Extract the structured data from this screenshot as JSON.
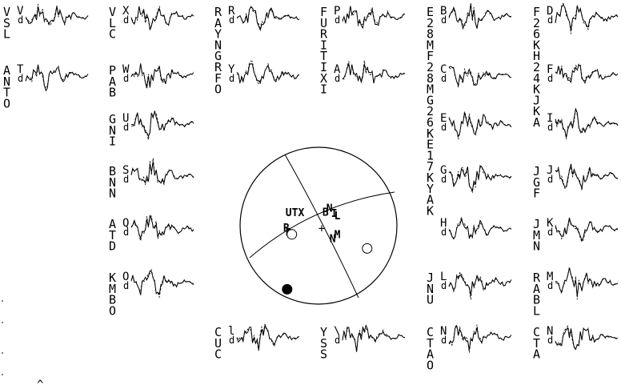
{
  "panels": [
    {
      "station": "VSL",
      "comp": "V",
      "col": 0,
      "row": 0
    },
    {
      "station": "ANTO",
      "comp": "T",
      "col": 0,
      "row": 1
    },
    {
      "station": "VLC",
      "comp": "X",
      "col": 1,
      "row": 0
    },
    {
      "station": "PAB",
      "comp": "W",
      "col": 1,
      "row": 1
    },
    {
      "station": "GNI",
      "comp": "U",
      "col": 1,
      "row": 2
    },
    {
      "station": "BNN",
      "comp": "S",
      "col": 1,
      "row": 3
    },
    {
      "station": "ATD",
      "comp": "Q",
      "col": 1,
      "row": 4
    },
    {
      "station": "KMBO",
      "comp": "O",
      "col": 1,
      "row": 5
    },
    {
      "station": "RAYNGRFO",
      "comp": "R",
      "col": 2,
      "row": 0
    },
    {
      "station": "",
      "comp": "Y",
      "col": 2,
      "row": 1
    },
    {
      "station": "CUC",
      "comp": "l",
      "col": 2,
      "row": 6
    },
    {
      "station": "FURITIXI",
      "comp": "P",
      "col": 3,
      "row": 0
    },
    {
      "station": "",
      "comp": "A",
      "col": 3,
      "row": 1
    },
    {
      "station": "YSS",
      "comp": "\\",
      "col": 3,
      "row": 6
    },
    {
      "station": "E28MF28MG26KE17KYAK",
      "comp": "B",
      "col": 4,
      "row": 0
    },
    {
      "station": "",
      "comp": "C",
      "col": 4,
      "row": 1
    },
    {
      "station": "",
      "comp": "E",
      "col": 4,
      "row": 2
    },
    {
      "station": "",
      "comp": "G",
      "col": 4,
      "row": 3
    },
    {
      "station": "",
      "comp": "H",
      "col": 4,
      "row": 4
    },
    {
      "station": "JNU",
      "comp": "L",
      "col": 4,
      "row": 5
    },
    {
      "station": "CTAO",
      "comp": "N",
      "col": 4,
      "row": 6
    },
    {
      "station": "F26KH24KJKA",
      "comp": "D",
      "col": 5,
      "row": 0
    },
    {
      "station": "",
      "comp": "F",
      "col": 5,
      "row": 1
    },
    {
      "station": "",
      "comp": "I",
      "col": 5,
      "row": 2
    },
    {
      "station": "JGF",
      "comp": "J",
      "col": 5,
      "row": 3
    },
    {
      "station": "JMN",
      "comp": "K",
      "col": 5,
      "row": 4
    },
    {
      "station": "RABL",
      "comp": "M",
      "col": 5,
      "row": 5
    },
    {
      "station": "CTA",
      "comp": "N",
      "col": 5,
      "row": 6
    }
  ],
  "subscript": "d",
  "beachball": {
    "center_mark": "+",
    "polarity_labels": [
      {
        "text": "UTX",
        "du": -0.42,
        "dv": -0.12
      },
      {
        "text": "B",
        "du": 0.05,
        "dv": -0.13
      },
      {
        "text": "N",
        "du": 0.1,
        "dv": -0.18
      },
      {
        "text": "I",
        "du": 0.16,
        "dv": -0.11
      },
      {
        "text": "L",
        "du": 0.2,
        "dv": -0.08
      },
      {
        "text": "R",
        "du": -0.45,
        "dv": 0.07
      },
      {
        "text": "D",
        "du": -0.42,
        "dv": 0.13
      },
      {
        "text": "M",
        "du": 0.2,
        "dv": 0.16
      },
      {
        "text": "N",
        "du": 0.14,
        "dv": 0.21
      }
    ],
    "symbols": [
      {
        "kind": "open",
        "du": -0.34,
        "dv": 0.11
      },
      {
        "kind": "open",
        "du": 0.62,
        "dv": 0.29
      },
      {
        "kind": "filled",
        "du": -0.4,
        "dv": 0.81
      }
    ]
  },
  "corner_mark": "^"
}
